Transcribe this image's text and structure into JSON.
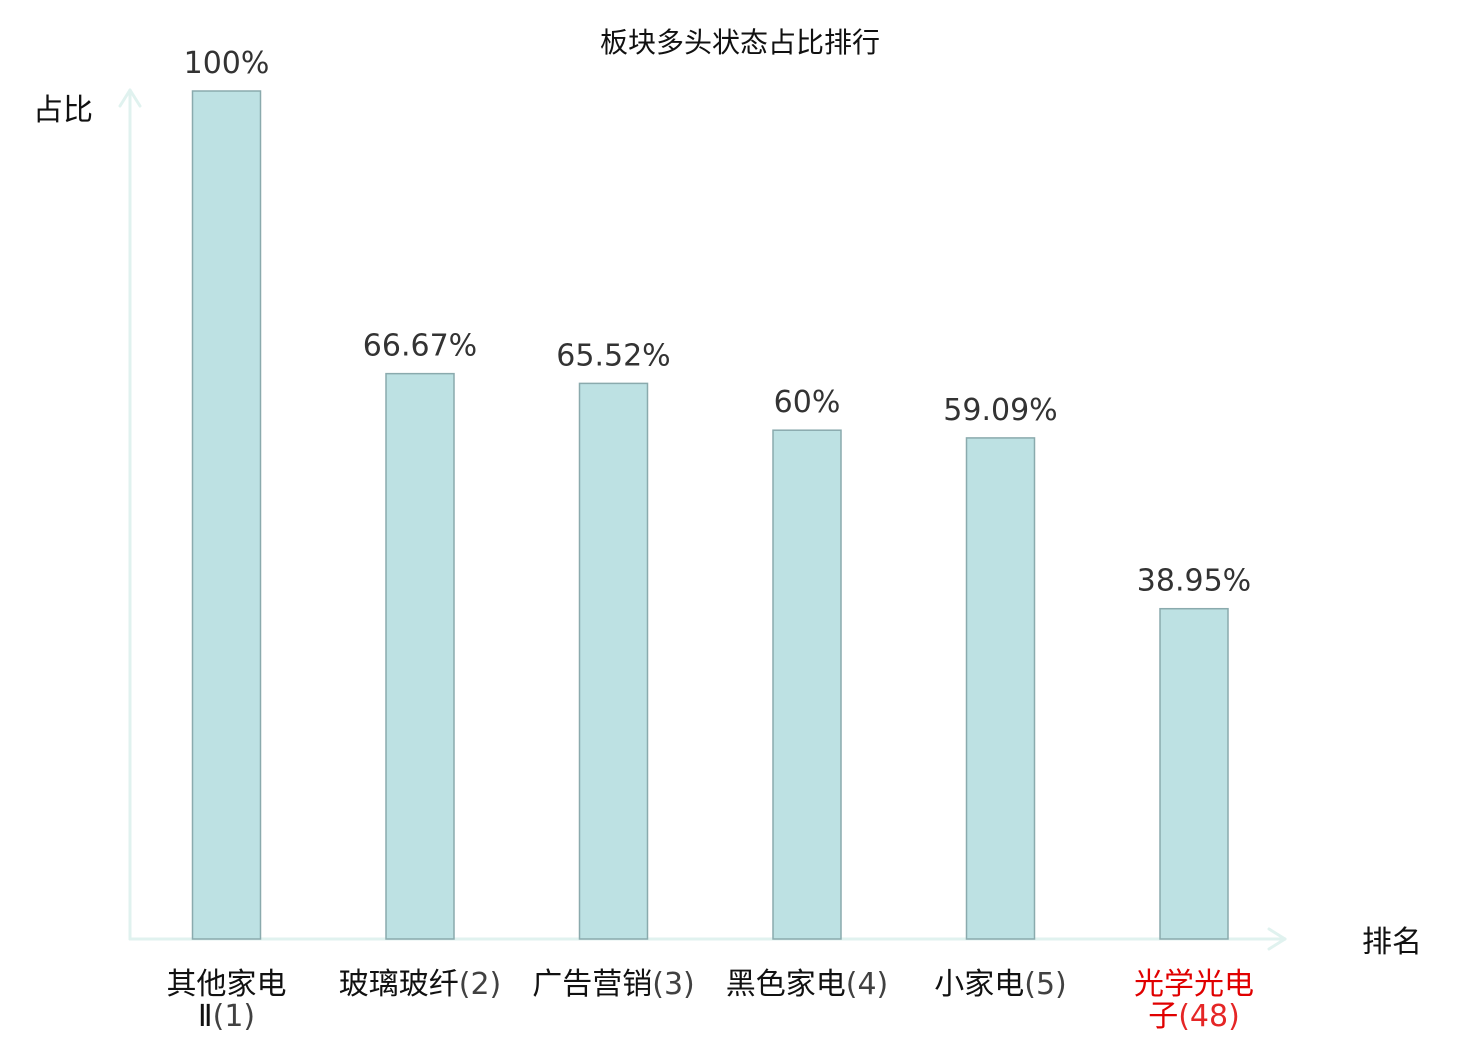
{
  "chart_data": {
    "type": "bar",
    "title": "板块多头状态占比排行",
    "ylabel": "占比",
    "xlabel": "排名",
    "ylim": [
      0,
      100
    ],
    "categories": [
      {
        "name_lines": [
          "其他家电",
          "Ⅱ"
        ],
        "rank": "(1)",
        "highlight": false
      },
      {
        "name_lines": [
          "玻璃玻纤"
        ],
        "rank": "(2)",
        "highlight": false
      },
      {
        "name_lines": [
          "广告营销"
        ],
        "rank": "(3)",
        "highlight": false
      },
      {
        "name_lines": [
          "黑色家电"
        ],
        "rank": "(4)",
        "highlight": false
      },
      {
        "name_lines": [
          "小家电"
        ],
        "rank": "(5)",
        "highlight": false
      },
      {
        "name_lines": [
          "光学光电",
          "子"
        ],
        "rank": "(48)",
        "highlight": true
      }
    ],
    "values": [
      100,
      66.67,
      65.52,
      60,
      59.09,
      38.95
    ],
    "value_labels": [
      "100%",
      "66.67%",
      "65.52%",
      "60%",
      "59.09%",
      "38.95%"
    ],
    "grid": false,
    "legend": "none"
  },
  "colors": {
    "bar_fill": "#bde1e3",
    "bar_stroke": "#8aaaad",
    "axis": "#e0f2ef",
    "text": "#333333",
    "label_text": "#111111",
    "highlight": "#e00000"
  }
}
